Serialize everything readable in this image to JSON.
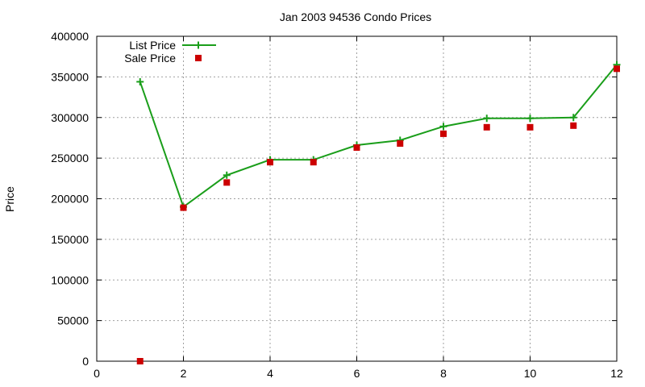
{
  "chart_data": {
    "type": "line",
    "title": "Jan 2003 94536 Condo Prices",
    "xlabel": "",
    "ylabel": "Price",
    "xlim": [
      0,
      12
    ],
    "ylim": [
      0,
      400000
    ],
    "x_ticks": [
      0,
      2,
      4,
      6,
      8,
      10,
      12
    ],
    "y_ticks": [
      0,
      50000,
      100000,
      150000,
      200000,
      250000,
      300000,
      350000,
      400000
    ],
    "grid": true,
    "legend_position": "top-left",
    "series": [
      {
        "name": "List Price",
        "style": "linespoints",
        "marker": "plus",
        "color": "#1a9e1a",
        "x": [
          1,
          2,
          3,
          4,
          5,
          6,
          7,
          8,
          9,
          10,
          11,
          12
        ],
        "values": [
          344000,
          190000,
          229000,
          248000,
          248000,
          266000,
          272000,
          289000,
          299000,
          299000,
          300000,
          365000
        ]
      },
      {
        "name": "Sale Price",
        "style": "points",
        "marker": "square",
        "color": "#cc0000",
        "x": [
          1,
          2,
          3,
          4,
          5,
          6,
          7,
          8,
          9,
          10,
          11,
          12
        ],
        "values": [
          0,
          189000,
          220000,
          245000,
          245000,
          263000,
          268000,
          280000,
          288000,
          288000,
          290000,
          360000
        ]
      }
    ]
  }
}
